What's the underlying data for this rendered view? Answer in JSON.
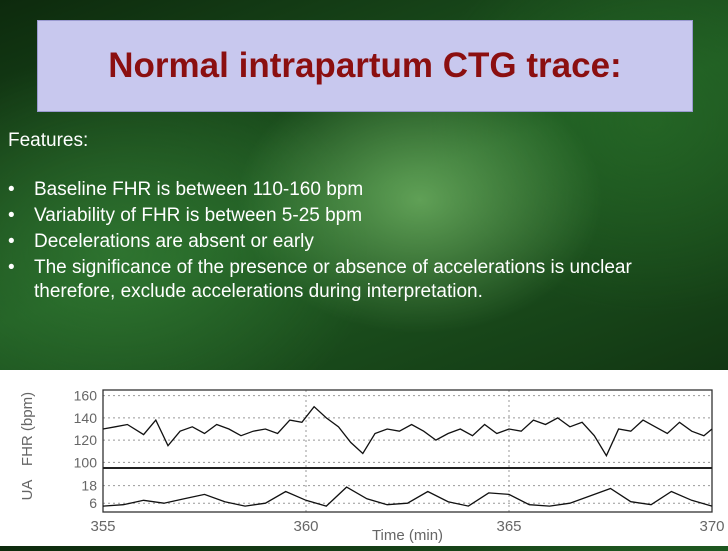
{
  "slide": {
    "title": "Normal intrapartum CTG trace:",
    "features_label": "Features:",
    "bullet_glyph": "•",
    "bullets": [
      "Baseline FHR is between 110-160 bpm",
      "Variability of FHR is between 5-25 bpm",
      "Decelerations are absent or early",
      "The significance of the presence or absence of accelerations is unclear therefore, exclude accelerations during interpretation."
    ]
  },
  "chart_data": {
    "type": "line",
    "x_ticks": [
      "355",
      "360",
      "365",
      "370"
    ],
    "xlabel": "Time (min)",
    "fhr": {
      "ylabel": "FHR (bpm)",
      "ylim": [
        95,
        165
      ],
      "y_ticks": [
        "160",
        "140",
        "120",
        "100"
      ],
      "x": [
        355,
        355.3,
        355.6,
        356,
        356.3,
        356.6,
        356.9,
        357.2,
        357.5,
        357.8,
        358.1,
        358.4,
        358.7,
        359,
        359.3,
        359.6,
        359.9,
        360.2,
        360.5,
        360.8,
        361.1,
        361.4,
        361.7,
        362,
        362.3,
        362.6,
        362.9,
        363.2,
        363.5,
        363.8,
        364.1,
        364.4,
        364.7,
        365,
        365.3,
        365.6,
        365.9,
        366.2,
        366.5,
        366.8,
        367.1,
        367.4,
        367.7,
        368,
        368.3,
        368.6,
        368.9,
        369.2,
        369.5,
        369.8,
        370
      ],
      "values": [
        130,
        132,
        134,
        125,
        138,
        115,
        128,
        132,
        126,
        134,
        130,
        124,
        128,
        130,
        126,
        138,
        136,
        150,
        140,
        132,
        118,
        108,
        126,
        130,
        128,
        134,
        128,
        120,
        126,
        130,
        124,
        134,
        126,
        130,
        128,
        138,
        134,
        140,
        132,
        136,
        124,
        106,
        130,
        128,
        138,
        132,
        126,
        136,
        128,
        124,
        130
      ]
    },
    "ua": {
      "ylabel": "UA",
      "y_ticks": [
        "18",
        "6"
      ],
      "ylim": [
        0,
        30
      ],
      "x": [
        355,
        355.5,
        356,
        356.5,
        357,
        357.5,
        358,
        358.5,
        359,
        359.5,
        360,
        360.5,
        361,
        361.5,
        362,
        362.5,
        363,
        363.5,
        364,
        364.5,
        365,
        365.5,
        366,
        366.5,
        367,
        367.5,
        368,
        368.5,
        369,
        369.5,
        370
      ],
      "values": [
        4,
        5,
        8,
        6,
        9,
        12,
        7,
        4,
        6,
        14,
        8,
        4,
        17,
        9,
        5,
        6,
        14,
        7,
        4,
        13,
        12,
        5,
        4,
        6,
        11,
        16,
        7,
        5,
        14,
        8,
        4
      ]
    }
  }
}
